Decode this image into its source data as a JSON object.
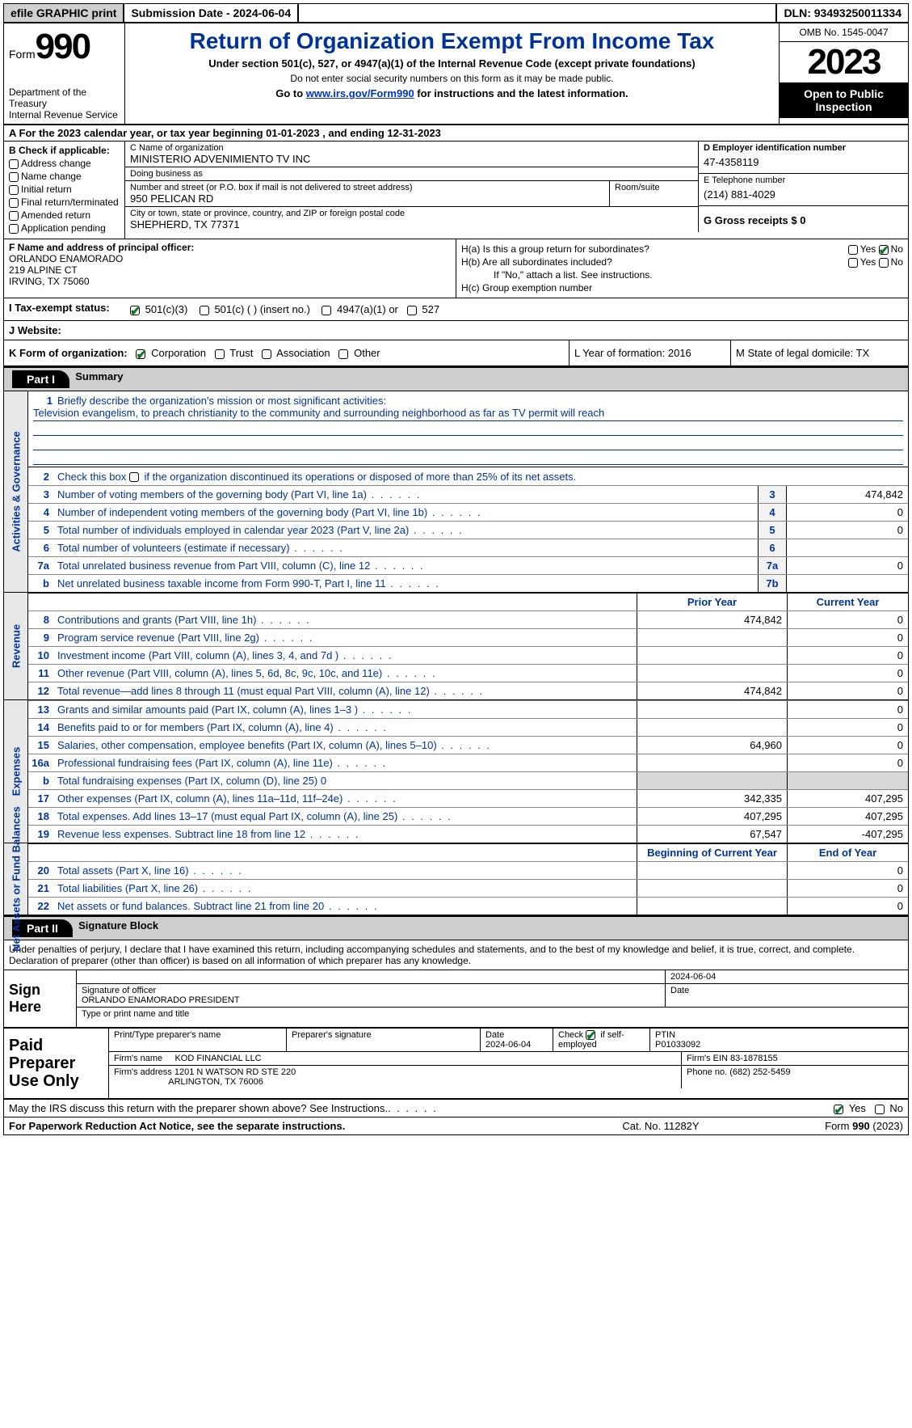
{
  "topbar": {
    "efile": "efile GRAPHIC print",
    "submission": "Submission Date - 2024-06-04",
    "dln": "DLN: 93493250011334"
  },
  "header": {
    "form_word": "Form",
    "form_num": "990",
    "title": "Return of Organization Exempt From Income Tax",
    "subtitle": "Under section 501(c), 527, or 4947(a)(1) of the Internal Revenue Code (except private foundations)",
    "warn": "Do not enter social security numbers on this form as it may be made public.",
    "goto_pre": "Go to ",
    "goto_link": "www.irs.gov/Form990",
    "goto_post": " for instructions and the latest information.",
    "dept": "Department of the Treasury",
    "irs": "Internal Revenue Service",
    "omb": "OMB No. 1545-0047",
    "year": "2023",
    "open": "Open to Public Inspection"
  },
  "rowA": "A For the 2023 calendar year, or tax year beginning 01-01-2023   , and ending 12-31-2023",
  "secB": {
    "label": "B Check if applicable:",
    "opts": [
      "Address change",
      "Name change",
      "Initial return",
      "Final return/terminated",
      "Amended return",
      "Application pending"
    ]
  },
  "secC": {
    "name_lbl": "C Name of organization",
    "name_val": "MINISTERIO ADVENIMIENTO TV INC",
    "dba_lbl": "Doing business as",
    "dba_val": "",
    "street_lbl": "Number and street (or P.O. box if mail is not delivered to street address)",
    "street_val": "950 PELICAN RD",
    "room_lbl": "Room/suite",
    "city_lbl": "City or town, state or province, country, and ZIP or foreign postal code",
    "city_val": "SHEPHERD, TX  77371"
  },
  "secD": {
    "ein_lbl": "D Employer identification number",
    "ein_val": "47-4358119",
    "tel_lbl": "E Telephone number",
    "tel_val": "(214) 881-4029",
    "gross_lbl": "G Gross receipts $ 0"
  },
  "secF": {
    "lbl": "F  Name and address of principal officer:",
    "name": "ORLANDO ENAMORADO",
    "addr1": "219 ALPINE CT",
    "addr2": "IRVING, TX  75060"
  },
  "secH": {
    "ha": "H(a)  Is this a group return for subordinates?",
    "hb": "H(b)  Are all subordinates included?",
    "hb2": "If \"No,\" attach a list. See instructions.",
    "hc": "H(c)  Group exemption number",
    "yes": "Yes",
    "no": "No"
  },
  "secI": {
    "lbl": "I  Tax-exempt status:",
    "o1": "501(c)(3)",
    "o2": "501(c) (  ) (insert no.)",
    "o3": "4947(a)(1) or",
    "o4": "527"
  },
  "secJ": {
    "lbl": "J  Website:"
  },
  "secK": {
    "lbl": "K Form of organization:",
    "o1": "Corporation",
    "o2": "Trust",
    "o3": "Association",
    "o4": "Other"
  },
  "secL": {
    "lbl": "L Year of formation: 2016"
  },
  "secM": {
    "lbl": "M State of legal domicile: TX"
  },
  "part1": {
    "num": "Part I",
    "title": "Summary"
  },
  "tabs": {
    "gov": "Activities & Governance",
    "rev": "Revenue",
    "exp": "Expenses",
    "net": "Net Assets or Fund Balances"
  },
  "line1": {
    "lbl": "Briefly describe the organization's mission or most significant activities:",
    "val": "Television evangelism, to preach christianity to the community and surrounding neighborhood as far as TV permit will reach"
  },
  "line2": "Check this box   if the organization discontinued its operations or disposed of more than 25% of its net assets.",
  "govLines": [
    {
      "n": "3",
      "d": "Number of voting members of the governing body (Part VI, line 1a)",
      "b": "3",
      "v": "474,842"
    },
    {
      "n": "4",
      "d": "Number of independent voting members of the governing body (Part VI, line 1b)",
      "b": "4",
      "v": "0"
    },
    {
      "n": "5",
      "d": "Total number of individuals employed in calendar year 2023 (Part V, line 2a)",
      "b": "5",
      "v": "0"
    },
    {
      "n": "6",
      "d": "Total number of volunteers (estimate if necessary)",
      "b": "6",
      "v": ""
    },
    {
      "n": "7a",
      "d": "Total unrelated business revenue from Part VIII, column (C), line 12",
      "b": "7a",
      "v": "0"
    },
    {
      "n": "b",
      "d": "Net unrelated business taxable income from Form 990-T, Part I, line 11",
      "b": "7b",
      "v": ""
    }
  ],
  "colHdr": {
    "py": "Prior Year",
    "cy": "Current Year",
    "by": "Beginning of Current Year",
    "ey": "End of Year"
  },
  "revLines": [
    {
      "n": "8",
      "d": "Contributions and grants (Part VIII, line 1h)",
      "p": "474,842",
      "c": "0"
    },
    {
      "n": "9",
      "d": "Program service revenue (Part VIII, line 2g)",
      "p": "",
      "c": "0"
    },
    {
      "n": "10",
      "d": "Investment income (Part VIII, column (A), lines 3, 4, and 7d )",
      "p": "",
      "c": "0"
    },
    {
      "n": "11",
      "d": "Other revenue (Part VIII, column (A), lines 5, 6d, 8c, 9c, 10c, and 11e)",
      "p": "",
      "c": "0"
    },
    {
      "n": "12",
      "d": "Total revenue—add lines 8 through 11 (must equal Part VIII, column (A), line 12)",
      "p": "474,842",
      "c": "0"
    }
  ],
  "expLines": [
    {
      "n": "13",
      "d": "Grants and similar amounts paid (Part IX, column (A), lines 1–3 )",
      "p": "",
      "c": "0"
    },
    {
      "n": "14",
      "d": "Benefits paid to or for members (Part IX, column (A), line 4)",
      "p": "",
      "c": "0"
    },
    {
      "n": "15",
      "d": "Salaries, other compensation, employee benefits (Part IX, column (A), lines 5–10)",
      "p": "64,960",
      "c": "0"
    },
    {
      "n": "16a",
      "d": "Professional fundraising fees (Part IX, column (A), line 11e)",
      "p": "",
      "c": "0"
    }
  ],
  "line16b": {
    "n": "b",
    "d": "Total fundraising expenses (Part IX, column (D), line 25) 0"
  },
  "expLines2": [
    {
      "n": "17",
      "d": "Other expenses (Part IX, column (A), lines 11a–11d, 11f–24e)",
      "p": "342,335",
      "c": "407,295"
    },
    {
      "n": "18",
      "d": "Total expenses. Add lines 13–17 (must equal Part IX, column (A), line 25)",
      "p": "407,295",
      "c": "407,295"
    },
    {
      "n": "19",
      "d": "Revenue less expenses. Subtract line 18 from line 12",
      "p": "67,547",
      "c": "-407,295"
    }
  ],
  "netLines": [
    {
      "n": "20",
      "d": "Total assets (Part X, line 16)",
      "p": "",
      "c": "0"
    },
    {
      "n": "21",
      "d": "Total liabilities (Part X, line 26)",
      "p": "",
      "c": "0"
    },
    {
      "n": "22",
      "d": "Net assets or fund balances. Subtract line 21 from line 20",
      "p": "",
      "c": "0"
    }
  ],
  "part2": {
    "num": "Part II",
    "title": "Signature Block"
  },
  "sigDecl": "Under penalties of perjury, I declare that I have examined this return, including accompanying schedules and statements, and to the best of my knowledge and belief, it is true, correct, and complete. Declaration of preparer (other than officer) is based on all information of which preparer has any knowledge.",
  "sign": {
    "here": "Sign Here",
    "date": "2024-06-04",
    "sig_lbl": "Signature of officer",
    "name": "ORLANDO ENAMORADO PRESIDENT",
    "type_lbl": "Type or print name and title",
    "date_lbl": "Date"
  },
  "prep": {
    "lbl": "Paid Preparer Use Only",
    "c1": "Print/Type preparer's name",
    "c2": "Preparer's signature",
    "c3_lbl": "Date",
    "c3_val": "2024-06-04",
    "c4_lbl": "Check",
    "c4_txt": "if self-employed",
    "c5_lbl": "PTIN",
    "c5_val": "P01033092",
    "firm_lbl": "Firm's name",
    "firm_val": "KOD FINANCIAL LLC",
    "ein_lbl": "Firm's EIN 83-1878155",
    "addr_lbl": "Firm's address",
    "addr_val1": "1201 N WATSON RD STE 220",
    "addr_val2": "ARLINGTON, TX  76006",
    "phone": "Phone no. (682) 252-5459"
  },
  "may": {
    "txt": "May the IRS discuss this return with the preparer shown above? See Instructions.",
    "yes": "Yes",
    "no": "No"
  },
  "footer": {
    "f1": "For Paperwork Reduction Act Notice, see the separate instructions.",
    "f2": "Cat. No. 11282Y",
    "f3_a": "Form ",
    "f3_b": "990",
    "f3_c": " (2023)"
  }
}
